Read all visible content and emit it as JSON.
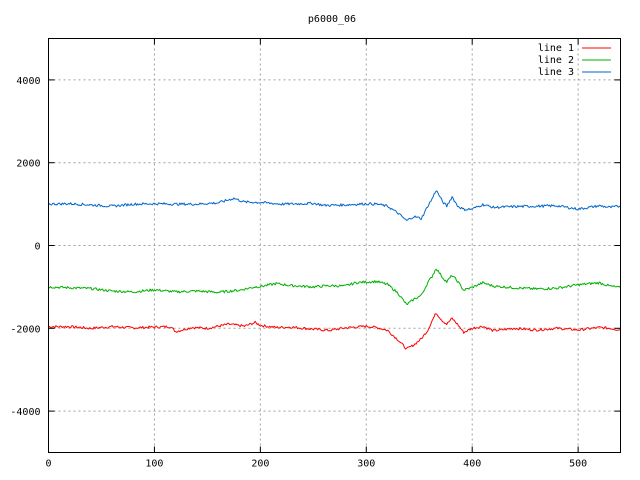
{
  "chart_data": {
    "type": "line",
    "title": "p6000_06",
    "xlabel": "",
    "ylabel": "",
    "xlim": [
      0,
      540
    ],
    "ylim": [
      -5000,
      5000
    ],
    "x_ticks": [
      0,
      100,
      200,
      300,
      400,
      500
    ],
    "y_ticks": [
      -4000,
      -2000,
      0,
      2000,
      4000
    ],
    "grid": true,
    "legend_position": "top-right",
    "series": [
      {
        "name": "line 1",
        "color": "#ff0000",
        "points": [
          [
            0,
            -1960
          ],
          [
            20,
            -1960
          ],
          [
            40,
            -2000
          ],
          [
            60,
            -1960
          ],
          [
            80,
            -1990
          ],
          [
            100,
            -1970
          ],
          [
            115,
            -1960
          ],
          [
            120,
            -2080
          ],
          [
            135,
            -1980
          ],
          [
            150,
            -2000
          ],
          [
            170,
            -1900
          ],
          [
            185,
            -1950
          ],
          [
            195,
            -1860
          ],
          [
            200,
            -1930
          ],
          [
            215,
            -1980
          ],
          [
            230,
            -1970
          ],
          [
            250,
            -2020
          ],
          [
            265,
            -2050
          ],
          [
            280,
            -1990
          ],
          [
            300,
            -1950
          ],
          [
            310,
            -1980
          ],
          [
            320,
            -2050
          ],
          [
            330,
            -2280
          ],
          [
            338,
            -2500
          ],
          [
            345,
            -2400
          ],
          [
            352,
            -2250
          ],
          [
            358,
            -2050
          ],
          [
            362,
            -1820
          ],
          [
            366,
            -1630
          ],
          [
            372,
            -1820
          ],
          [
            376,
            -1900
          ],
          [
            381,
            -1760
          ],
          [
            386,
            -1900
          ],
          [
            392,
            -2100
          ],
          [
            400,
            -2000
          ],
          [
            410,
            -1950
          ],
          [
            420,
            -2060
          ],
          [
            440,
            -2000
          ],
          [
            460,
            -2040
          ],
          [
            480,
            -2000
          ],
          [
            500,
            -2040
          ],
          [
            520,
            -1980
          ],
          [
            530,
            -2000
          ],
          [
            540,
            -2040
          ]
        ]
      },
      {
        "name": "line 2",
        "color": "#00b000",
        "points": [
          [
            0,
            -1000
          ],
          [
            20,
            -1020
          ],
          [
            40,
            -1040
          ],
          [
            60,
            -1100
          ],
          [
            80,
            -1120
          ],
          [
            100,
            -1070
          ],
          [
            120,
            -1120
          ],
          [
            140,
            -1100
          ],
          [
            160,
            -1130
          ],
          [
            180,
            -1080
          ],
          [
            195,
            -1000
          ],
          [
            200,
            -990
          ],
          [
            215,
            -920
          ],
          [
            230,
            -970
          ],
          [
            250,
            -1000
          ],
          [
            265,
            -970
          ],
          [
            280,
            -980
          ],
          [
            290,
            -900
          ],
          [
            300,
            -880
          ],
          [
            310,
            -870
          ],
          [
            320,
            -940
          ],
          [
            330,
            -1150
          ],
          [
            338,
            -1430
          ],
          [
            345,
            -1300
          ],
          [
            352,
            -1200
          ],
          [
            358,
            -900
          ],
          [
            362,
            -750
          ],
          [
            366,
            -550
          ],
          [
            372,
            -770
          ],
          [
            376,
            -880
          ],
          [
            381,
            -720
          ],
          [
            386,
            -860
          ],
          [
            392,
            -1080
          ],
          [
            400,
            -1010
          ],
          [
            410,
            -900
          ],
          [
            420,
            -980
          ],
          [
            440,
            -1020
          ],
          [
            460,
            -1050
          ],
          [
            480,
            -1030
          ],
          [
            500,
            -950
          ],
          [
            520,
            -900
          ],
          [
            530,
            -980
          ],
          [
            540,
            -1020
          ]
        ]
      },
      {
        "name": "line 3",
        "color": "#0066cc",
        "points": [
          [
            0,
            1000
          ],
          [
            20,
            1010
          ],
          [
            40,
            980
          ],
          [
            60,
            950
          ],
          [
            80,
            1000
          ],
          [
            100,
            1010
          ],
          [
            120,
            1000
          ],
          [
            140,
            1000
          ],
          [
            160,
            1030
          ],
          [
            175,
            1140
          ],
          [
            185,
            1050
          ],
          [
            200,
            1040
          ],
          [
            220,
            1000
          ],
          [
            240,
            1010
          ],
          [
            250,
            1020
          ],
          [
            260,
            970
          ],
          [
            280,
            980
          ],
          [
            300,
            1010
          ],
          [
            310,
            1000
          ],
          [
            320,
            950
          ],
          [
            330,
            780
          ],
          [
            338,
            600
          ],
          [
            345,
            700
          ],
          [
            352,
            650
          ],
          [
            358,
            950
          ],
          [
            362,
            1120
          ],
          [
            366,
            1340
          ],
          [
            372,
            1060
          ],
          [
            376,
            950
          ],
          [
            381,
            1180
          ],
          [
            386,
            960
          ],
          [
            392,
            870
          ],
          [
            400,
            880
          ],
          [
            410,
            990
          ],
          [
            420,
            920
          ],
          [
            440,
            940
          ],
          [
            460,
            950
          ],
          [
            480,
            960
          ],
          [
            500,
            880
          ],
          [
            520,
            960
          ],
          [
            530,
            920
          ],
          [
            540,
            950
          ]
        ]
      }
    ]
  }
}
